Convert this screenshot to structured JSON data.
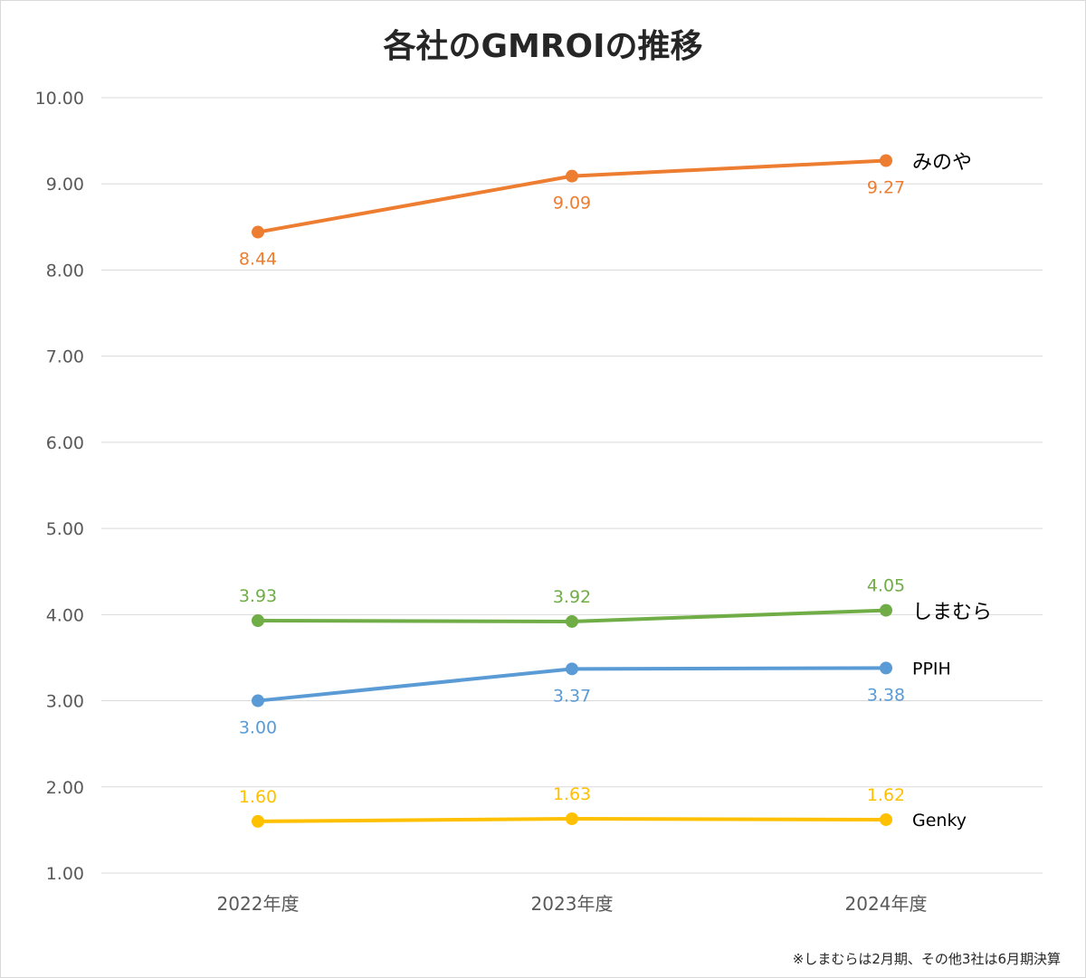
{
  "chart_data": {
    "type": "line",
    "title": "各社のGMROIの推移",
    "categories": [
      "2022年度",
      "2023年度",
      "2024年度"
    ],
    "ylim": [
      1.0,
      10.0
    ],
    "yticks": [
      "1.00",
      "2.00",
      "3.00",
      "4.00",
      "5.00",
      "6.00",
      "7.00",
      "8.00",
      "9.00",
      "10.00"
    ],
    "grid": true,
    "series": [
      {
        "name": "みのや",
        "color": "#ED7D31",
        "values": [
          8.44,
          9.09,
          9.27
        ],
        "labels": [
          "8.44",
          "9.09",
          "9.27"
        ],
        "label_pos": "below"
      },
      {
        "name": "しまむら",
        "color": "#70AD47",
        "values": [
          3.93,
          3.92,
          4.05
        ],
        "labels": [
          "3.93",
          "3.92",
          "4.05"
        ],
        "label_pos": "above"
      },
      {
        "name": "PPIH",
        "color": "#5B9BD5",
        "values": [
          3.0,
          3.37,
          3.38
        ],
        "labels": [
          "3.00",
          "3.37",
          "3.38"
        ],
        "label_pos": "below"
      },
      {
        "name": "Genky",
        "color": "#FFC000",
        "values": [
          1.6,
          1.63,
          1.62
        ],
        "labels": [
          "1.60",
          "1.63",
          "1.62"
        ],
        "label_pos": "above"
      }
    ],
    "footnote": "※しまむらは2月期、その他3社は6月期決算"
  }
}
